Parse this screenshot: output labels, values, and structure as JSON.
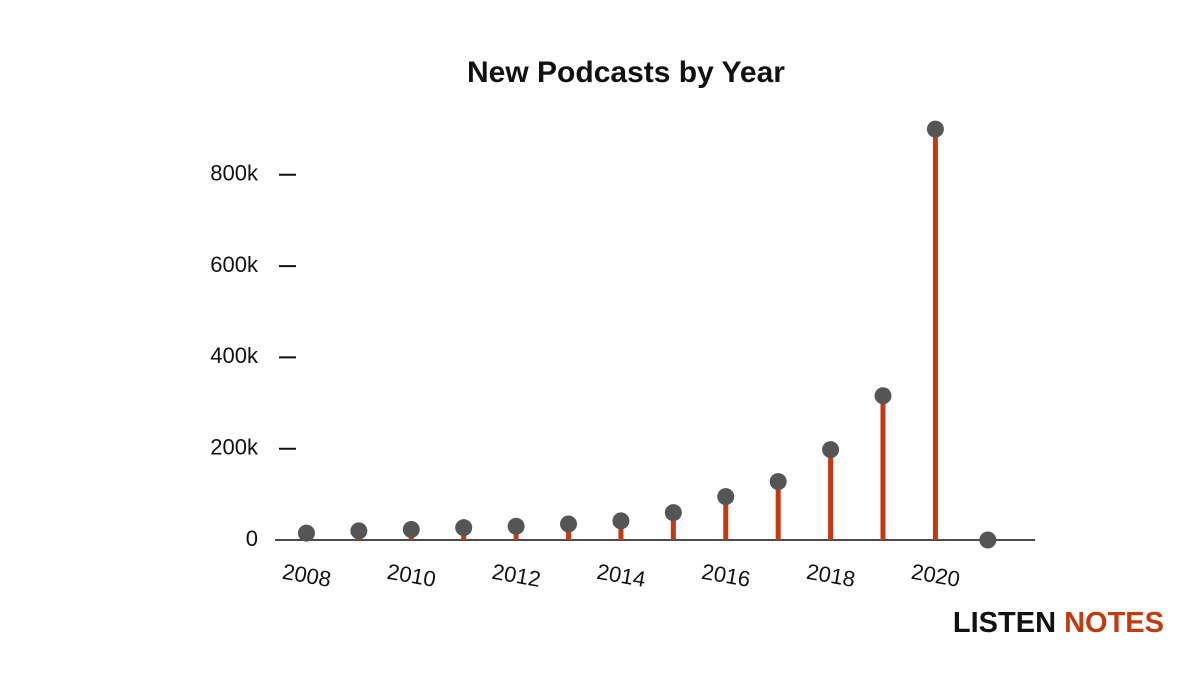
{
  "chart_data": {
    "type": "lollipop",
    "title": "New Podcasts by Year",
    "x": [
      2008,
      2009,
      2010,
      2011,
      2012,
      2013,
      2014,
      2015,
      2016,
      2017,
      2018,
      2019,
      2020,
      2021
    ],
    "values": [
      15000,
      20000,
      23000,
      27000,
      30000,
      35000,
      42000,
      60000,
      95000,
      128000,
      198000,
      316000,
      900000,
      0
    ],
    "xlim": [
      2007.4,
      2021.9
    ],
    "xticks": [
      2008,
      2010,
      2012,
      2014,
      2016,
      2018,
      2020
    ],
    "ylim": [
      0,
      920000
    ],
    "yticks": [
      {
        "value": 0,
        "label": "0"
      },
      {
        "value": 200000,
        "label": "200k"
      },
      {
        "value": 400000,
        "label": "400k"
      },
      {
        "value": 600000,
        "label": "600k"
      },
      {
        "value": 800000,
        "label": "800k"
      }
    ],
    "color": "#c23a10",
    "marker_color": "#555555",
    "watermark": [
      "LISTEN",
      "NOTES"
    ],
    "watermark_colors": [
      "#111111",
      "#c23a10"
    ]
  }
}
